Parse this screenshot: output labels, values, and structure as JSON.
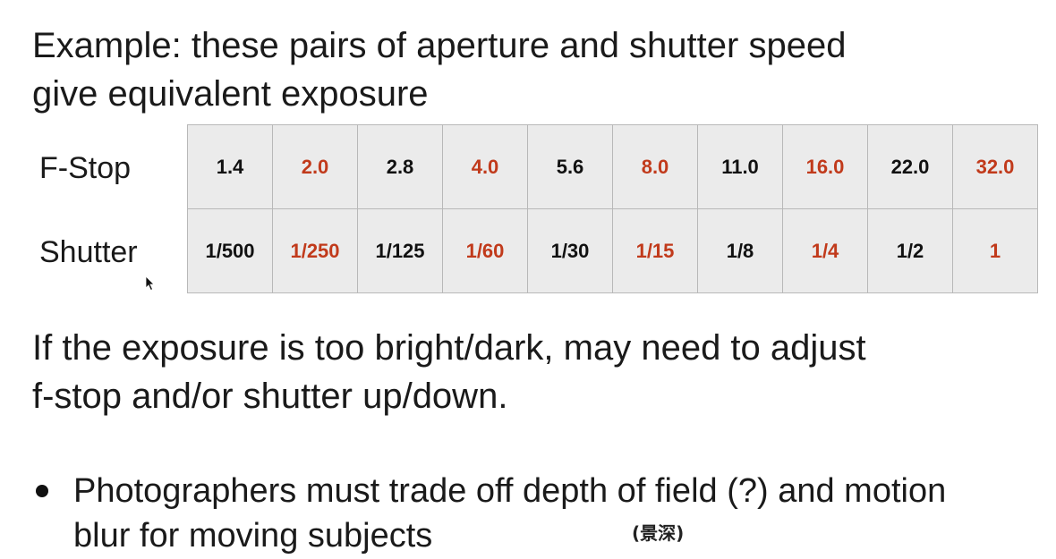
{
  "title": {
    "line1": "Example: these pairs of aperture and shutter speed",
    "line2": "give equivalent exposure"
  },
  "table": {
    "rows": [
      {
        "label": "F-Stop",
        "cells": [
          "1.4",
          "2.0",
          "2.8",
          "4.0",
          "5.6",
          "8.0",
          "11.0",
          "16.0",
          "22.0",
          "32.0"
        ]
      },
      {
        "label": "Shutter",
        "cells": [
          "1/500",
          "1/250",
          "1/125",
          "1/60",
          "1/30",
          "1/15",
          "1/8",
          "1/4",
          "1/2",
          "1"
        ]
      }
    ],
    "colors": {
      "normal": "#111111",
      "accent": "#c13a1b",
      "cell_background": "#ebebeb",
      "border": "#b8b8b8"
    }
  },
  "paragraph": {
    "line1": "If the exposure is too bright/dark, may need to adjust",
    "line2": "f-stop and/or shutter up/down."
  },
  "bullet": {
    "line1": "Photographers must trade off depth of field (?) and motion",
    "line2": "blur for moving subjects",
    "annotation": "(景深)"
  },
  "icons": {
    "cursor": "mouse-pointer-icon",
    "bullet": "bullet-dot-icon"
  }
}
